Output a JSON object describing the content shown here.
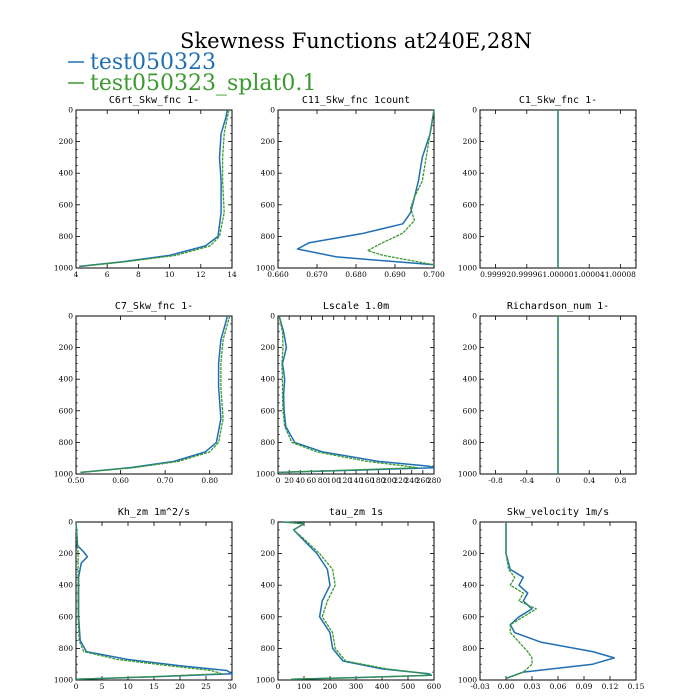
{
  "title": "Skewness Functions at240E,28N",
  "legend": [
    {
      "name": "test050323",
      "color": "#1f6fb4"
    },
    {
      "name": "test050323_splat0.1",
      "color": "#3a9a2e"
    }
  ],
  "chart_data": [
    {
      "type": "line",
      "title": "C6rt_Skw_fnc  1-",
      "xlim": [
        4,
        14
      ],
      "ylim": [
        0,
        1000
      ],
      "y_inverted": true,
      "xticks": [
        4,
        6,
        8,
        10,
        12,
        14
      ],
      "xtick_labels": [
        "4",
        "6",
        "8",
        "10",
        "12",
        "14"
      ],
      "yticks": [
        0,
        200,
        400,
        600,
        800,
        1000
      ],
      "series": [
        {
          "name": "test050323",
          "x": [
            13.7,
            13.6,
            13.3,
            13.2,
            13.3,
            13.3,
            13.1,
            12.3,
            10.0,
            7.0,
            4.2
          ],
          "y": [
            0,
            50,
            150,
            300,
            450,
            650,
            800,
            860,
            920,
            960,
            990
          ]
        },
        {
          "name": "test050323_splat0.1",
          "x": [
            13.8,
            13.7,
            13.5,
            13.4,
            13.4,
            13.5,
            13.2,
            12.6,
            10.4,
            7.2,
            4.3
          ],
          "y": [
            0,
            50,
            150,
            300,
            450,
            650,
            800,
            860,
            920,
            960,
            990
          ]
        }
      ]
    },
    {
      "type": "line",
      "title": "C11_Skw_fnc  1count",
      "xlim": [
        0.66,
        0.7
      ],
      "ylim": [
        0,
        1000
      ],
      "y_inverted": true,
      "xticks": [
        0.66,
        0.67,
        0.68,
        0.69,
        0.7
      ],
      "xtick_labels": [
        "0.660",
        "0.670",
        "0.680",
        "0.690",
        "0.700"
      ],
      "yticks": [
        0,
        200,
        400,
        600,
        800,
        1000
      ],
      "series": [
        {
          "name": "test050323",
          "x": [
            0.7,
            0.699,
            0.697,
            0.696,
            0.695,
            0.694,
            0.692,
            0.682,
            0.668,
            0.665,
            0.675,
            0.7
          ],
          "y": [
            0,
            150,
            300,
            450,
            550,
            650,
            720,
            780,
            840,
            880,
            930,
            980
          ]
        },
        {
          "name": "test050323_splat0.1",
          "x": [
            0.7,
            0.699,
            0.698,
            0.697,
            0.695,
            0.694,
            0.695,
            0.692,
            0.686,
            0.683,
            0.687,
            0.7
          ],
          "y": [
            0,
            150,
            300,
            450,
            550,
            620,
            700,
            780,
            850,
            890,
            920,
            980
          ]
        }
      ]
    },
    {
      "type": "line",
      "title": "C1_Skw_fnc  1-",
      "xlim": [
        0.9999,
        1.0001
      ],
      "ylim": [
        0,
        1000
      ],
      "y_inverted": true,
      "xticks": [
        0.99992,
        0.99996,
        1.0,
        1.00004,
        1.00008
      ],
      "xtick_labels": [
        "0.99992",
        "0.99996",
        "1.00000",
        "1.00004",
        "1.00008"
      ],
      "yticks": [
        0,
        200,
        400,
        600,
        800,
        1000
      ],
      "series": [
        {
          "name": "test050323",
          "x": [
            1.0,
            1.0
          ],
          "y": [
            0,
            1000
          ]
        },
        {
          "name": "test050323_splat0.1",
          "x": [
            1.0,
            1.0
          ],
          "y": [
            0,
            1000
          ]
        }
      ]
    },
    {
      "type": "line",
      "title": "C7_Skw_fnc  1-",
      "xlim": [
        0.5,
        0.85
      ],
      "ylim": [
        0,
        1000
      ],
      "y_inverted": true,
      "xticks": [
        0.5,
        0.6,
        0.7,
        0.8
      ],
      "xtick_labels": [
        "0.50",
        "0.60",
        "0.70",
        "0.80"
      ],
      "yticks": [
        0,
        200,
        400,
        600,
        800,
        1000
      ],
      "series": [
        {
          "name": "test050323",
          "x": [
            0.84,
            0.835,
            0.825,
            0.82,
            0.82,
            0.825,
            0.815,
            0.79,
            0.72,
            0.62,
            0.51
          ],
          "y": [
            0,
            50,
            150,
            300,
            450,
            650,
            800,
            860,
            920,
            960,
            990
          ]
        },
        {
          "name": "test050323_splat0.1",
          "x": [
            0.845,
            0.84,
            0.83,
            0.825,
            0.825,
            0.83,
            0.82,
            0.8,
            0.73,
            0.63,
            0.51
          ],
          "y": [
            0,
            50,
            150,
            300,
            450,
            650,
            800,
            860,
            920,
            960,
            990
          ]
        }
      ]
    },
    {
      "type": "line",
      "title": "Lscale  1.0m",
      "xlim": [
        0,
        280
      ],
      "ylim": [
        0,
        1000
      ],
      "y_inverted": true,
      "xticks": [
        0,
        20,
        40,
        60,
        80,
        100,
        120,
        140,
        160,
        180,
        200,
        220,
        240,
        260,
        280
      ],
      "xtick_labels": [
        "0",
        "20",
        "40",
        "60",
        "80",
        "100",
        "120",
        "140",
        "160",
        "180",
        "200",
        "220",
        "240",
        "260",
        "280"
      ],
      "yticks": [
        0,
        200,
        400,
        600,
        800,
        1000
      ],
      "series": [
        {
          "name": "test050323",
          "x": [
            2,
            10,
            15,
            8,
            12,
            10,
            11,
            14,
            30,
            80,
            180,
            270,
            280,
            150,
            0
          ],
          "y": [
            0,
            100,
            200,
            300,
            400,
            500,
            600,
            700,
            800,
            860,
            920,
            950,
            960,
            975,
            990
          ]
        },
        {
          "name": "test050323_splat0.1",
          "x": [
            2,
            8,
            9,
            7,
            8,
            8,
            9,
            12,
            25,
            70,
            160,
            230,
            250,
            130,
            0
          ],
          "y": [
            0,
            100,
            200,
            300,
            400,
            500,
            600,
            700,
            800,
            860,
            920,
            950,
            960,
            975,
            990
          ]
        }
      ]
    },
    {
      "type": "line",
      "title": "Richardson_num  1-",
      "xlim": [
        -1,
        1
      ],
      "ylim": [
        0,
        1000
      ],
      "y_inverted": true,
      "xticks": [
        -0.8,
        -0.4,
        0,
        0.4,
        0.8
      ],
      "xtick_labels": [
        "-0.8",
        "-0.4",
        "0",
        "0.4",
        "0.8"
      ],
      "yticks": [
        0,
        200,
        400,
        600,
        800,
        1000
      ],
      "series": [
        {
          "name": "test050323",
          "x": [
            0,
            0
          ],
          "y": [
            0,
            1000
          ]
        },
        {
          "name": "test050323_splat0.1",
          "x": [
            0,
            0
          ],
          "y": [
            0,
            1000
          ]
        }
      ]
    },
    {
      "type": "line",
      "title": "Kh_zm  1m^2/s",
      "xlim": [
        0,
        30
      ],
      "ylim": [
        0,
        1000
      ],
      "y_inverted": true,
      "xticks": [
        0,
        5,
        10,
        15,
        20,
        25,
        30
      ],
      "xtick_labels": [
        "0",
        "5",
        "10",
        "15",
        "20",
        "25",
        "30"
      ],
      "yticks": [
        0,
        200,
        400,
        600,
        800,
        1000
      ],
      "series": [
        {
          "name": "test050323",
          "x": [
            0,
            0.3,
            1.5,
            2.2,
            1,
            0.5,
            0.5,
            0.8,
            2,
            10,
            20,
            29,
            30,
            15,
            0
          ],
          "y": [
            0,
            150,
            190,
            220,
            260,
            350,
            600,
            750,
            820,
            870,
            910,
            940,
            960,
            980,
            995
          ]
        },
        {
          "name": "test050323_splat0.1",
          "x": [
            0,
            0.2,
            0.4,
            0.4,
            0.4,
            0.4,
            0.4,
            0.6,
            1.5,
            8,
            18,
            26,
            28,
            14,
            0
          ],
          "y": [
            0,
            150,
            190,
            220,
            260,
            350,
            600,
            750,
            820,
            870,
            910,
            940,
            960,
            980,
            995
          ]
        }
      ]
    },
    {
      "type": "line",
      "title": "tau_zm  1s",
      "xlim": [
        0,
        600
      ],
      "ylim": [
        0,
        1000
      ],
      "y_inverted": true,
      "xticks": [
        0,
        100,
        200,
        300,
        400,
        500,
        600
      ],
      "xtick_labels": [
        "0",
        "100",
        "200",
        "300",
        "400",
        "500",
        "600"
      ],
      "yticks": [
        0,
        200,
        400,
        600,
        800,
        1000
      ],
      "series": [
        {
          "name": "test050323",
          "x": [
            20,
            100,
            60,
            90,
            150,
            190,
            200,
            170,
            160,
            200,
            210,
            250,
            400,
            580,
            590,
            300,
            50
          ],
          "y": [
            0,
            10,
            50,
            100,
            200,
            300,
            400,
            500,
            600,
            700,
            800,
            880,
            930,
            960,
            970,
            985,
            995
          ]
        },
        {
          "name": "test050323_splat0.1",
          "x": [
            20,
            100,
            60,
            95,
            160,
            210,
            220,
            190,
            170,
            210,
            220,
            260,
            420,
            570,
            585,
            300,
            50
          ],
          "y": [
            0,
            10,
            50,
            100,
            200,
            300,
            400,
            500,
            600,
            700,
            800,
            880,
            930,
            960,
            970,
            985,
            995
          ]
        }
      ]
    },
    {
      "type": "line",
      "title": "Skw_velocity  1m/s",
      "xlim": [
        -0.03,
        0.15
      ],
      "ylim": [
        0,
        1000
      ],
      "y_inverted": true,
      "xticks": [
        -0.03,
        0.0,
        0.03,
        0.06,
        0.09,
        0.12,
        0.15
      ],
      "xtick_labels": [
        "-0.03",
        "0.00",
        "0.03",
        "0.06",
        "0.09",
        "0.12",
        "0.15"
      ],
      "yticks": [
        0,
        200,
        400,
        600,
        800,
        1000
      ],
      "series": [
        {
          "name": "test050323",
          "x": [
            0.0,
            0.0,
            0.005,
            0.02,
            0.015,
            0.025,
            0.02,
            0.03,
            0.015,
            0.005,
            0.01,
            0.04,
            0.1,
            0.125,
            0.1,
            0.02,
            0.0
          ],
          "y": [
            0,
            200,
            300,
            350,
            400,
            450,
            500,
            550,
            600,
            650,
            700,
            760,
            820,
            860,
            900,
            950,
            990
          ]
        },
        {
          "name": "test050323_splat0.1",
          "x": [
            0.0,
            0.0,
            0.003,
            0.01,
            0.005,
            0.02,
            0.015,
            0.035,
            0.02,
            0.005,
            0.005,
            0.015,
            0.025,
            0.03,
            0.03,
            0.02,
            0.0
          ],
          "y": [
            0,
            200,
            300,
            350,
            400,
            450,
            500,
            550,
            600,
            650,
            700,
            760,
            820,
            860,
            900,
            950,
            990
          ]
        }
      ]
    }
  ]
}
